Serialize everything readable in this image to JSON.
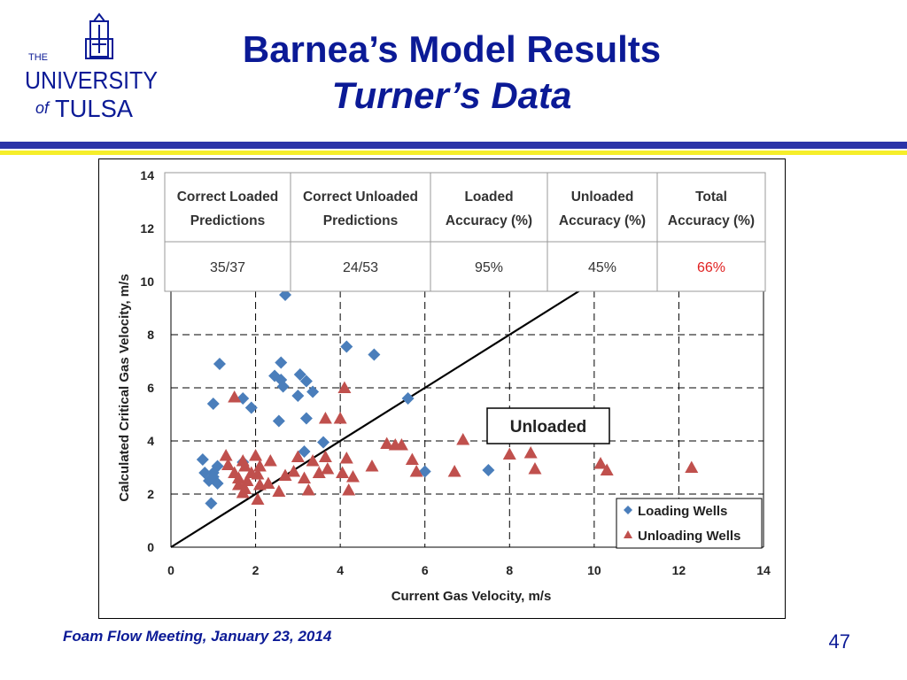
{
  "logo": {
    "line1": "THE",
    "line2": "UNIVERSITY",
    "line3_of": "of",
    "line3": "TULSA",
    "color": "#0b1a96"
  },
  "title": {
    "line1": "Barnea’s Model Results",
    "line2": "Turner’s Data",
    "color": "#0b1a96"
  },
  "footer": {
    "left": "Foam Flow Meeting, January 23, 2014",
    "page": "47"
  },
  "table": {
    "headers": [
      [
        "Correct Loaded",
        "Predictions"
      ],
      [
        "Correct Unloaded",
        "Predictions"
      ],
      [
        "Loaded",
        "Accuracy (%)"
      ],
      [
        "Unloaded",
        "Accuracy (%)"
      ],
      [
        "Total",
        "Accuracy (%)"
      ]
    ],
    "values": [
      "35/37",
      "24/53",
      "95%",
      "45%",
      "66%"
    ],
    "highlight_color": "#e02020"
  },
  "chart_data": {
    "type": "scatter",
    "xlabel": "Current Gas Velocity, m/s",
    "ylabel": "Calculated Critical Gas Velocity, m/s",
    "xlim": [
      0,
      14
    ],
    "ylim": [
      0,
      14
    ],
    "x_ticks": [
      "0",
      "2",
      "4",
      "6",
      "8",
      "10",
      "12",
      "14"
    ],
    "y_ticks": [
      "0",
      "2",
      "4",
      "6",
      "8",
      "10",
      "12",
      "14"
    ],
    "grid": true,
    "grid_style": "dashed",
    "legend_placement": "bottom-right",
    "annotation": "Unloaded",
    "reference_line": {
      "from": [
        0,
        0
      ],
      "to": [
        14,
        14
      ]
    },
    "series": [
      {
        "name": "Loading Wells",
        "marker": "diamond",
        "color": "#4a7ebb",
        "points": [
          [
            2.7,
            9.5
          ],
          [
            4.15,
            7.55
          ],
          [
            4.8,
            7.25
          ],
          [
            1.15,
            6.9
          ],
          [
            2.6,
            6.95
          ],
          [
            2.45,
            6.45
          ],
          [
            3.05,
            6.5
          ],
          [
            2.6,
            6.3
          ],
          [
            3.2,
            6.25
          ],
          [
            2.65,
            6.05
          ],
          [
            3.35,
            5.85
          ],
          [
            3.0,
            5.7
          ],
          [
            1.7,
            5.6
          ],
          [
            5.6,
            5.6
          ],
          [
            1.0,
            5.4
          ],
          [
            1.9,
            5.25
          ],
          [
            3.2,
            4.85
          ],
          [
            2.55,
            4.75
          ],
          [
            3.6,
            3.95
          ],
          [
            3.15,
            3.6
          ],
          [
            0.75,
            3.3
          ],
          [
            1.7,
            3.2
          ],
          [
            1.1,
            3.05
          ],
          [
            1.0,
            2.8
          ],
          [
            0.8,
            2.8
          ],
          [
            1.0,
            2.65
          ],
          [
            0.9,
            2.5
          ],
          [
            1.1,
            2.4
          ],
          [
            6.0,
            2.85
          ],
          [
            7.5,
            2.9
          ],
          [
            0.95,
            1.65
          ]
        ]
      },
      {
        "name": "Unloading Wells",
        "marker": "triangle",
        "color": "#c0504d",
        "points": [
          [
            4.1,
            6.0
          ],
          [
            1.5,
            5.65
          ],
          [
            3.65,
            4.85
          ],
          [
            4.0,
            4.85
          ],
          [
            6.9,
            4.05
          ],
          [
            5.1,
            3.9
          ],
          [
            5.3,
            3.85
          ],
          [
            5.45,
            3.85
          ],
          [
            8.5,
            3.55
          ],
          [
            8.0,
            3.5
          ],
          [
            1.3,
            3.45
          ],
          [
            2.0,
            3.45
          ],
          [
            3.0,
            3.4
          ],
          [
            3.65,
            3.4
          ],
          [
            4.15,
            3.35
          ],
          [
            5.7,
            3.3
          ],
          [
            1.7,
            3.25
          ],
          [
            2.35,
            3.25
          ],
          [
            3.35,
            3.25
          ],
          [
            10.15,
            3.15
          ],
          [
            1.35,
            3.1
          ],
          [
            1.75,
            3.05
          ],
          [
            2.1,
            3.05
          ],
          [
            4.75,
            3.05
          ],
          [
            8.6,
            2.95
          ],
          [
            3.7,
            2.95
          ],
          [
            12.3,
            3.0
          ],
          [
            10.3,
            2.9
          ],
          [
            2.9,
            2.85
          ],
          [
            5.8,
            2.85
          ],
          [
            6.7,
            2.85
          ],
          [
            1.5,
            2.8
          ],
          [
            1.9,
            2.8
          ],
          [
            2.05,
            2.75
          ],
          [
            3.5,
            2.8
          ],
          [
            4.05,
            2.8
          ],
          [
            2.7,
            2.7
          ],
          [
            4.3,
            2.65
          ],
          [
            1.6,
            2.6
          ],
          [
            3.15,
            2.6
          ],
          [
            1.8,
            2.5
          ],
          [
            2.3,
            2.4
          ],
          [
            1.6,
            2.35
          ],
          [
            2.1,
            2.35
          ],
          [
            1.75,
            2.2
          ],
          [
            2.55,
            2.1
          ],
          [
            3.25,
            2.15
          ],
          [
            4.2,
            2.15
          ],
          [
            1.7,
            2.05
          ],
          [
            2.05,
            1.8
          ]
        ]
      }
    ]
  }
}
